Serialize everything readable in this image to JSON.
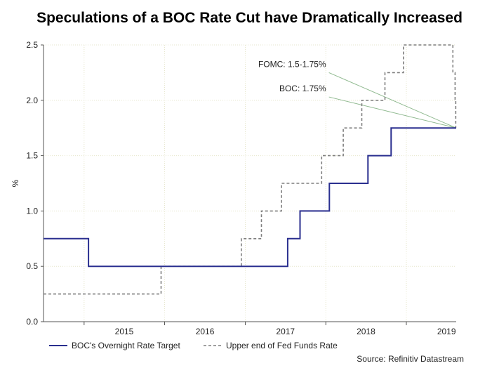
{
  "chart_data": {
    "type": "line",
    "title": "Speculations of a BOC Rate Cut have Dramatically Increased",
    "ylabel": "%",
    "xlabel": "",
    "xlim": [
      "2014-07-01",
      "2019-08-15"
    ],
    "ylim": [
      0,
      2.5
    ],
    "yticks": [
      "0.0",
      "0.5",
      "1.0",
      "1.5",
      "2.0",
      "2.5"
    ],
    "xticks": [
      "2015",
      "2016",
      "2017",
      "2018",
      "2019"
    ],
    "grid": true,
    "legend_position": "bottom",
    "colors": {
      "boc": "#2a2f8f",
      "fed": "#7f7f7f",
      "annotation": "#8fb98f",
      "grid": "#e6e6cc"
    },
    "series": [
      {
        "name": "BOC's Overnight Rate Target",
        "style": "solid",
        "shape": "step",
        "points": [
          {
            "x": "2014-07-01",
            "y": 0.75
          },
          {
            "x": "2015-01-21",
            "y": 0.5
          },
          {
            "x": "2017-07-12",
            "y": 0.75
          },
          {
            "x": "2017-09-06",
            "y": 1.0
          },
          {
            "x": "2018-01-17",
            "y": 1.25
          },
          {
            "x": "2018-07-11",
            "y": 1.5
          },
          {
            "x": "2018-10-24",
            "y": 1.75
          },
          {
            "x": "2019-08-15",
            "y": 1.75
          }
        ]
      },
      {
        "name": "Upper end of Fed Funds Rate",
        "style": "dashed",
        "shape": "step",
        "points": [
          {
            "x": "2014-07-01",
            "y": 0.25
          },
          {
            "x": "2015-12-16",
            "y": 0.5
          },
          {
            "x": "2016-12-14",
            "y": 0.75
          },
          {
            "x": "2017-03-15",
            "y": 1.0
          },
          {
            "x": "2017-06-14",
            "y": 1.25
          },
          {
            "x": "2017-12-13",
            "y": 1.5
          },
          {
            "x": "2018-03-21",
            "y": 1.75
          },
          {
            "x": "2018-06-13",
            "y": 2.0
          },
          {
            "x": "2018-09-26",
            "y": 2.25
          },
          {
            "x": "2018-12-19",
            "y": 2.5
          },
          {
            "x": "2019-07-31",
            "y": 2.25
          },
          {
            "x": "2019-08-10",
            "y": 2.0
          },
          {
            "x": "2019-08-13",
            "y": 1.75
          },
          {
            "x": "2019-08-15",
            "y": 1.75
          }
        ]
      }
    ],
    "annotations": [
      {
        "text": "FOMC: 1.5-1.75%",
        "start": {
          "x": "2018-01-15",
          "y": 2.25
        },
        "end": {
          "x": "2019-08-15",
          "y": 1.75
        }
      },
      {
        "text": "BOC: 1.75%",
        "start": {
          "x": "2018-01-15",
          "y": 2.03
        },
        "end": {
          "x": "2019-08-15",
          "y": 1.75
        }
      }
    ],
    "source": "Source: Refinitiv Datastream"
  }
}
